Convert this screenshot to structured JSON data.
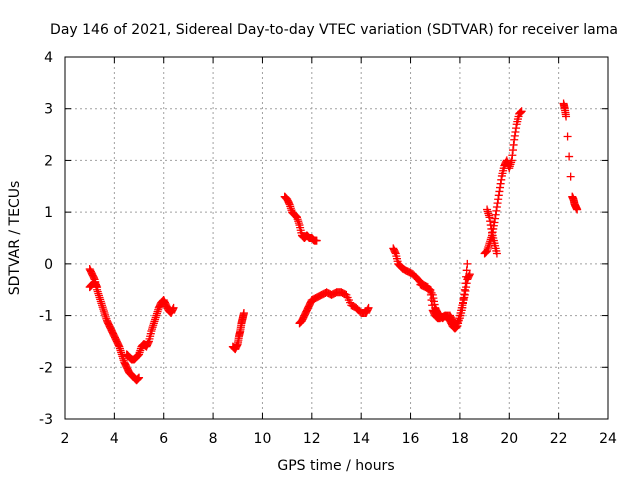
{
  "chart_data": {
    "type": "scatter",
    "title": "Day 146 of 2021, Sidereal Day-to-day VTEC variation (SDTVAR) for receiver lama",
    "xlabel": "GPS time / hours",
    "ylabel": "SDTVAR / TECUs",
    "xlim": [
      2,
      24
    ],
    "ylim": [
      -3,
      4
    ],
    "xticks": [
      2,
      4,
      6,
      8,
      10,
      12,
      14,
      16,
      18,
      20,
      22,
      24
    ],
    "yticks": [
      -3,
      -2,
      -1,
      0,
      1,
      2,
      3,
      4
    ],
    "grid": true,
    "marker": "+",
    "color": "#ff0000",
    "series": [
      {
        "name": "segment-1",
        "x": [
          3.0,
          3.1,
          3.2,
          3.3,
          3.4,
          3.5,
          3.6,
          3.7,
          3.8,
          3.9,
          4.0,
          4.1,
          4.2,
          4.3,
          4.4,
          4.5,
          4.6,
          4.7,
          4.8,
          4.9,
          5.0
        ],
        "y": [
          -0.1,
          -0.2,
          -0.3,
          -0.5,
          -0.65,
          -0.8,
          -0.95,
          -1.1,
          -1.2,
          -1.3,
          -1.4,
          -1.5,
          -1.6,
          -1.75,
          -1.9,
          -2.0,
          -2.1,
          -2.15,
          -2.2,
          -2.25,
          -2.2
        ]
      },
      {
        "name": "segment-2",
        "x": [
          3.0,
          3.1,
          3.2,
          3.3
        ],
        "y": [
          -0.45,
          -0.4,
          -0.35,
          -0.45
        ]
      },
      {
        "name": "segment-3",
        "x": [
          4.5,
          4.6,
          4.7,
          4.8,
          4.9,
          5.0,
          5.1,
          5.2,
          5.3,
          5.4,
          5.5,
          5.6,
          5.7,
          5.8,
          5.9,
          6.0,
          6.1,
          6.2,
          6.3,
          6.4
        ],
        "y": [
          -1.75,
          -1.8,
          -1.85,
          -1.85,
          -1.8,
          -1.75,
          -1.6,
          -1.55,
          -1.6,
          -1.5,
          -1.3,
          -1.15,
          -1.0,
          -0.85,
          -0.75,
          -0.7,
          -0.8,
          -0.9,
          -0.95,
          -0.85
        ]
      },
      {
        "name": "segment-4",
        "x": [
          8.8,
          8.9,
          9.0,
          9.05,
          9.1,
          9.15,
          9.2,
          9.25
        ],
        "y": [
          -1.6,
          -1.65,
          -1.55,
          -1.4,
          -1.3,
          -1.15,
          -1.05,
          -0.95
        ]
      },
      {
        "name": "segment-5",
        "x": [
          10.9,
          11.0,
          11.1,
          11.2,
          11.3,
          11.4,
          11.5,
          11.6,
          11.7,
          11.8,
          11.9,
          12.0,
          12.1,
          12.2
        ],
        "y": [
          1.3,
          1.25,
          1.15,
          1.0,
          0.95,
          0.9,
          0.75,
          0.55,
          0.5,
          0.55,
          0.5,
          0.5,
          0.45,
          0.45
        ]
      },
      {
        "name": "segment-6",
        "x": [
          11.5,
          11.6,
          11.7,
          11.8,
          11.9,
          12.0,
          12.2,
          12.4,
          12.6,
          12.8,
          13.0,
          13.2,
          13.4,
          13.6,
          13.8,
          14.0,
          14.2,
          14.3
        ],
        "y": [
          -1.15,
          -1.1,
          -1.0,
          -0.9,
          -0.8,
          -0.7,
          -0.65,
          -0.6,
          -0.55,
          -0.6,
          -0.55,
          -0.55,
          -0.6,
          -0.8,
          -0.85,
          -0.95,
          -0.95,
          -0.85
        ]
      },
      {
        "name": "segment-7",
        "x": [
          15.3,
          15.4,
          15.5,
          15.6,
          15.7,
          15.9,
          16.1,
          16.3,
          16.5,
          16.7,
          16.9,
          17.0,
          17.1,
          17.2,
          17.3,
          17.4,
          17.5,
          17.6,
          17.7,
          17.8,
          17.9,
          18.0,
          18.1,
          18.2,
          18.3,
          18.4
        ],
        "y": [
          0.3,
          0.2,
          0.0,
          -0.05,
          -0.1,
          -0.15,
          -0.2,
          -0.3,
          -0.4,
          -0.45,
          -0.6,
          -0.85,
          -0.95,
          -1.0,
          -1.05,
          -1.0,
          -1.05,
          -1.1,
          -1.2,
          -1.25,
          -1.2,
          -1.0,
          -0.8,
          -0.6,
          -0.3,
          -0.2
        ]
      },
      {
        "name": "segment-8",
        "x": [
          16.4,
          16.6,
          16.8,
          16.9,
          17.0,
          17.1,
          17.2,
          17.4,
          17.6,
          17.7,
          17.8,
          18.0,
          18.1,
          18.2,
          18.3
        ],
        "y": [
          -0.4,
          -0.45,
          -0.5,
          -0.9,
          -1.0,
          -1.05,
          -1.05,
          -1.0,
          -1.0,
          -1.1,
          -1.2,
          -1.05,
          -0.85,
          -0.5,
          0.0
        ]
      },
      {
        "name": "segment-9",
        "x": [
          19.0,
          19.1,
          19.2,
          19.3,
          19.4,
          19.5,
          19.6,
          19.7,
          19.8,
          19.9,
          20.0,
          20.1,
          20.2,
          20.3,
          20.4,
          20.5
        ],
        "y": [
          0.2,
          0.25,
          0.4,
          0.55,
          0.8,
          1.1,
          1.4,
          1.7,
          1.9,
          2.0,
          1.85,
          2.0,
          2.4,
          2.7,
          2.9,
          2.95
        ]
      },
      {
        "name": "segment-10",
        "x": [
          19.1,
          19.2,
          19.3,
          19.4,
          19.5
        ],
        "y": [
          1.05,
          0.9,
          0.6,
          0.4,
          0.2
        ]
      },
      {
        "name": "segment-11",
        "x": [
          22.2,
          22.25,
          22.3,
          22.55,
          22.6,
          22.65,
          22.7,
          22.75
        ],
        "y": [
          3.1,
          3.0,
          2.85,
          1.3,
          1.25,
          1.15,
          1.1,
          1.05
        ]
      }
    ]
  }
}
